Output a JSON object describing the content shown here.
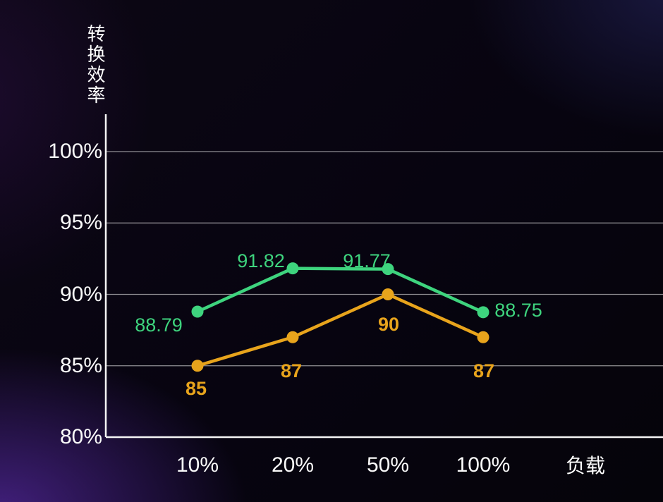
{
  "chart_data": {
    "type": "line",
    "title": "",
    "ylabel": "转换效率",
    "xlabel": "负载",
    "categories": [
      "10%",
      "20%",
      "50%",
      "100%"
    ],
    "yticks": [
      {
        "label": "100%",
        "value": 100
      },
      {
        "label": "95%",
        "value": 95
      },
      {
        "label": "90%",
        "value": 90
      },
      {
        "label": "85%",
        "value": 85
      },
      {
        "label": "80%",
        "value": 80
      }
    ],
    "ylim": [
      80,
      100
    ],
    "grid": true,
    "legend": false,
    "series": [
      {
        "id": "green",
        "color": "#3ed47e",
        "values": [
          88.79,
          91.82,
          91.77,
          88.75
        ]
      },
      {
        "id": "orange",
        "color": "#e8a41c",
        "values": [
          85,
          87,
          90,
          87
        ]
      }
    ],
    "colors": {
      "axis": "#f5f5f5",
      "gridline": "rgba(255,255,255,0.55)",
      "background_glow_purple": "#7a3ae6",
      "background_glow_navy": "#2f3076"
    }
  }
}
